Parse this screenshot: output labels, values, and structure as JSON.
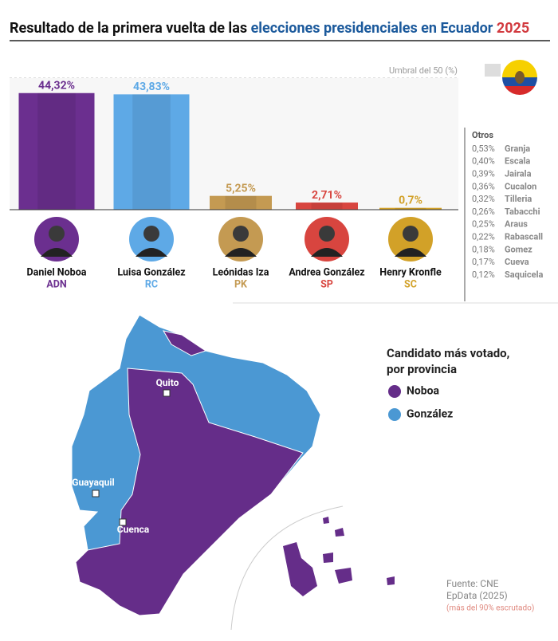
{
  "title": [
    "Resultado de la primera vuelta de las ",
    "elecciones presidenciales en Ecuador",
    " 2025"
  ],
  "chart_data": {
    "type": "bar",
    "categories": [
      "Daniel Noboa",
      "Luisa González",
      "Leónidas Iza",
      "Andrea González",
      "Henry Kronfle"
    ],
    "parties": [
      "ADN",
      "RC",
      "PK",
      "SP",
      "SC"
    ],
    "values": [
      44.32,
      43.83,
      5.25,
      2.71,
      0.7
    ],
    "value_labels": [
      "44,32%",
      "43,83%",
      "5,25%",
      "2,71%",
      "0,7%"
    ],
    "colors": [
      "#6b2f8f",
      "#5ea9e6",
      "#c49a52",
      "#d8453f",
      "#d2a128"
    ],
    "ylim": [
      0,
      50
    ],
    "threshold": {
      "value": 50,
      "label": "Umbral del 50 (%)"
    }
  },
  "others": {
    "title": "Otros",
    "items": [
      {
        "share": "0,53%",
        "name": "Granja"
      },
      {
        "share": "0,40%",
        "name": "Escala"
      },
      {
        "share": "0,39%",
        "name": "Jairala"
      },
      {
        "share": "0,36%",
        "name": "Cucalon"
      },
      {
        "share": "0,32%",
        "name": "Tilleria"
      },
      {
        "share": "0,26%",
        "name": "Tabacchi"
      },
      {
        "share": "0,25%",
        "name": "Araus"
      },
      {
        "share": "0,22%",
        "name": "Rabascall"
      },
      {
        "share": "0,18%",
        "name": "Gomez"
      },
      {
        "share": "0,17%",
        "name": "Cueva"
      },
      {
        "share": "0,12%",
        "name": "Saquicela"
      }
    ]
  },
  "map": {
    "legend_title": [
      "Candidato más votado,",
      "por provincia"
    ],
    "legend": [
      {
        "name": "Noboa",
        "color": "#652d89"
      },
      {
        "name": "González",
        "color": "#4b98d3"
      }
    ],
    "cities": [
      "Quito",
      "Guayaquil",
      "Cuenca"
    ]
  },
  "source": [
    "Fuente: CNE",
    "EpData (2025)",
    "(más del 90% escrutado)"
  ]
}
